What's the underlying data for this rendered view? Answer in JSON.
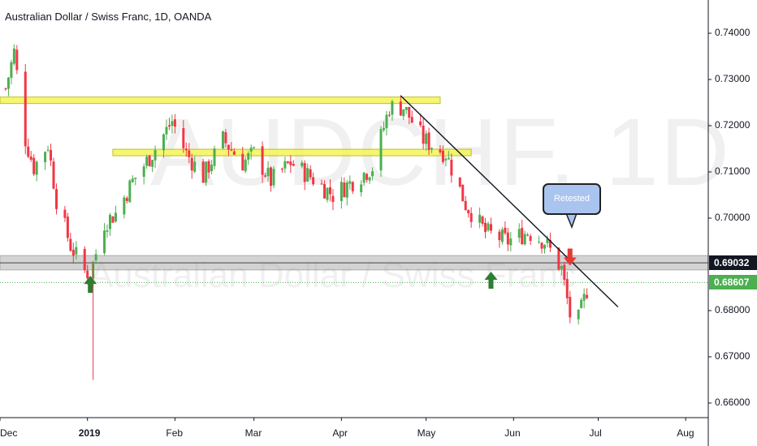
{
  "header": {
    "title": "Australian Dollar / Swiss Franc, 1D, OANDA"
  },
  "watermark": {
    "symbol": "AUDCHF, 1D",
    "name": "Australian Dollar / Swiss Franc"
  },
  "annotations": {
    "callout_text": "Retested",
    "arrow_up_color": "#2e7d32",
    "arrow_down_color": "#e53935",
    "highlight_color": "#f5f55a",
    "support_zone_color": "#b0b0b0"
  },
  "price_tags": {
    "support": {
      "value": "0.69032",
      "color": "#131722"
    },
    "last": {
      "value": "0.68607",
      "color": "#4caf50"
    }
  },
  "chart_data": {
    "type": "candlestick",
    "title": "Australian Dollar / Swiss Franc, 1D, OANDA",
    "ylim": [
      0.6585,
      0.7455
    ],
    "y_ticks": [
      "0.74000",
      "0.73000",
      "0.72000",
      "0.71000",
      "0.70000",
      "0.68000",
      "0.67000",
      "0.66000"
    ],
    "x_ticks": [
      "Dec",
      "2019",
      "Feb",
      "Mar",
      "Apr",
      "May",
      "Jun",
      "Jul",
      "Aug"
    ],
    "x_range": [
      "2018-12-01",
      "2019-08-09"
    ],
    "grid": false,
    "close_path": [
      [
        "2018-12-03",
        0.728
      ],
      [
        "2018-12-06",
        0.736
      ],
      [
        "2018-12-10",
        0.717
      ],
      [
        "2018-12-13",
        0.711
      ],
      [
        "2018-12-18",
        0.716
      ],
      [
        "2018-12-21",
        0.704
      ],
      [
        "2018-12-26",
        0.694
      ],
      [
        "2018-12-31",
        0.6885
      ],
      [
        "2019-01-02",
        0.688
      ],
      [
        "2019-01-07",
        0.699
      ],
      [
        "2019-01-11",
        0.701
      ],
      [
        "2019-01-17",
        0.708
      ],
      [
        "2019-01-24",
        0.714
      ],
      [
        "2019-01-31",
        0.721
      ],
      [
        "2019-02-05",
        0.714
      ],
      [
        "2019-02-11",
        0.709
      ],
      [
        "2019-02-18",
        0.717
      ],
      [
        "2019-02-25",
        0.712
      ],
      [
        "2019-03-01",
        0.714
      ],
      [
        "2019-03-07",
        0.708
      ],
      [
        "2019-03-14",
        0.712
      ],
      [
        "2019-03-21",
        0.709
      ],
      [
        "2019-03-29",
        0.705
      ],
      [
        "2019-04-05",
        0.708
      ],
      [
        "2019-04-12",
        0.711
      ],
      [
        "2019-04-18",
        0.724
      ],
      [
        "2019-04-23",
        0.724
      ],
      [
        "2019-04-30",
        0.717
      ],
      [
        "2019-05-08",
        0.714
      ],
      [
        "2019-05-15",
        0.703
      ],
      [
        "2019-05-22",
        0.697
      ],
      [
        "2019-05-30",
        0.695
      ],
      [
        "2019-06-06",
        0.697
      ],
      [
        "2019-06-12",
        0.695
      ],
      [
        "2019-06-18",
        0.689
      ],
      [
        "2019-06-21",
        0.679
      ],
      [
        "2019-06-24",
        0.678
      ],
      [
        "2019-06-27",
        0.6845
      ],
      [
        "2019-06-28",
        0.6861
      ]
    ],
    "wick_low": {
      "date": "2019-01-03",
      "value": 0.665
    },
    "resistance_levels": [
      {
        "value": 0.7255,
        "from": "2018-12-01",
        "to": "2019-05-06"
      },
      {
        "value": 0.7142,
        "from": "2019-01-10",
        "to": "2019-05-17"
      }
    ],
    "support_zone": [
      0.6895,
      0.6912
    ],
    "support_line": 0.69032,
    "current_price_line": 0.68607,
    "trendline": [
      [
        "2019-04-22",
        0.7265
      ],
      [
        "2019-07-08",
        0.6808
      ]
    ],
    "up_arrows": [
      {
        "date": "2019-01-02",
        "value": 0.6856
      },
      {
        "date": "2019-05-24",
        "value": 0.6865
      }
    ],
    "down_arrow": {
      "date": "2019-06-21",
      "value": 0.6915
    },
    "candle_colors": {
      "up": "#4caf50",
      "down": "#f23645"
    }
  }
}
